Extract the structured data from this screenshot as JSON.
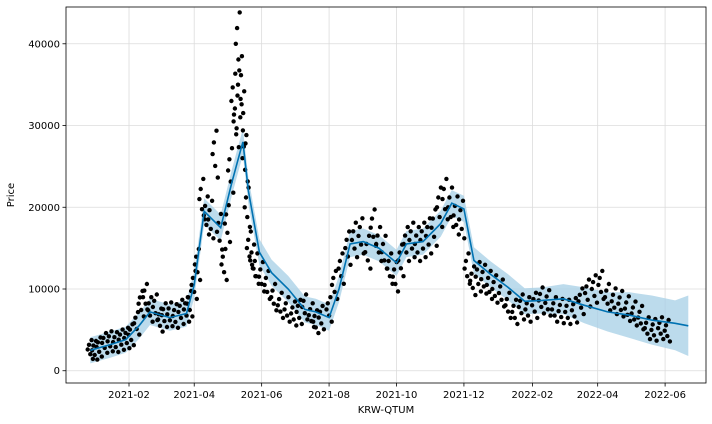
{
  "chart_data": {
    "type": "line",
    "title": "",
    "xlabel": "KRW-QTUM",
    "ylabel": "Price",
    "xlim": [
      "2020-12-06",
      "2022-07-08"
    ],
    "ylim": [
      -1500,
      44500
    ],
    "grid": true,
    "legend": "none",
    "x_ticks": [
      "2021-02",
      "2021-04",
      "2021-06",
      "2021-08",
      "2021-10",
      "2021-12",
      "2022-02",
      "2022-04",
      "2022-06"
    ],
    "y_ticks": [
      0,
      10000,
      20000,
      30000,
      40000
    ],
    "colors": {
      "forecast_line": "#0072b2",
      "uncertainty_band": "#a6cfe6",
      "observations": "#000000",
      "grid": "#dcdcdc"
    },
    "series": [
      {
        "kind": "forecast",
        "x": [
          "2020-12-28",
          "2021-01-15",
          "2021-01-29",
          "2021-02-10",
          "2021-02-20",
          "2021-03-10",
          "2021-03-25",
          "2021-04-01",
          "2021-04-10",
          "2021-04-25",
          "2021-05-05",
          "2021-05-10",
          "2021-05-15",
          "2021-05-20",
          "2021-05-30",
          "2021-06-10",
          "2021-06-25",
          "2021-07-10",
          "2021-07-20",
          "2021-08-01",
          "2021-08-10",
          "2021-08-20",
          "2021-09-01",
          "2021-09-15",
          "2021-10-01",
          "2021-10-10",
          "2021-10-25",
          "2021-11-10",
          "2021-11-20",
          "2021-12-01",
          "2021-12-10",
          "2021-12-25",
          "2022-01-10",
          "2022-01-25",
          "2022-02-10",
          "2022-03-01",
          "2022-03-20",
          "2022-04-10",
          "2022-04-30",
          "2022-05-20",
          "2022-06-10",
          "2022-06-22"
        ],
        "yhat": [
          2500,
          3200,
          3800,
          5500,
          7200,
          6500,
          7000,
          10500,
          19500,
          17500,
          23000,
          25500,
          28000,
          22000,
          14500,
          12000,
          10000,
          7500,
          7200,
          6500,
          10000,
          15500,
          15800,
          15000,
          13200,
          15500,
          15800,
          18000,
          20500,
          19800,
          13500,
          11800,
          10200,
          8500,
          8600,
          8800,
          8000,
          7200,
          6800,
          6200,
          5800,
          5500
        ],
        "yhat_lower": [
          900,
          1600,
          2200,
          3900,
          5600,
          4900,
          5400,
          8900,
          17900,
          15900,
          21400,
          23900,
          26400,
          20400,
          12900,
          10400,
          8400,
          5900,
          5600,
          4900,
          8400,
          13900,
          14200,
          13400,
          11600,
          13900,
          14200,
          16400,
          18900,
          18200,
          11900,
          10200,
          8600,
          6900,
          7000,
          6900,
          5800,
          4800,
          4000,
          3200,
          2500,
          1800
        ],
        "yhat_upper": [
          4100,
          4800,
          5400,
          7100,
          8800,
          8100,
          8600,
          12100,
          21100,
          19100,
          24600,
          27100,
          29600,
          23600,
          16100,
          13600,
          11600,
          9100,
          8800,
          8100,
          11600,
          17100,
          17400,
          16600,
          14800,
          17100,
          17400,
          19600,
          22100,
          21400,
          15100,
          13400,
          11800,
          10100,
          10200,
          10600,
          10200,
          9600,
          9600,
          9200,
          8600,
          9200
        ]
      },
      {
        "kind": "observations",
        "x": [
          "2020-12-28",
          "2021-01-01",
          "2021-01-05",
          "2021-01-10",
          "2021-01-15",
          "2021-01-20",
          "2021-01-25",
          "2021-01-30",
          "2021-02-03",
          "2021-02-08",
          "2021-02-12",
          "2021-02-16",
          "2021-02-20",
          "2021-02-25",
          "2021-03-01",
          "2021-03-05",
          "2021-03-10",
          "2021-03-15",
          "2021-03-20",
          "2021-03-25",
          "2021-03-28",
          "2021-04-01",
          "2021-04-04",
          "2021-04-08",
          "2021-04-12",
          "2021-04-16",
          "2021-04-20",
          "2021-04-24",
          "2021-04-28",
          "2021-05-01",
          "2021-05-04",
          "2021-05-07",
          "2021-05-09",
          "2021-05-11",
          "2021-05-13",
          "2021-05-15",
          "2021-05-17",
          "2021-05-19",
          "2021-05-21",
          "2021-05-24",
          "2021-05-27",
          "2021-06-01",
          "2021-06-06",
          "2021-06-12",
          "2021-06-18",
          "2021-06-24",
          "2021-06-30",
          "2021-07-05",
          "2021-07-10",
          "2021-07-16",
          "2021-07-20",
          "2021-07-25",
          "2021-08-01",
          "2021-08-06",
          "2021-08-12",
          "2021-08-18",
          "2021-08-24",
          "2021-08-30",
          "2021-09-05",
          "2021-09-10",
          "2021-09-15",
          "2021-09-20",
          "2021-09-25",
          "2021-09-30",
          "2021-10-05",
          "2021-10-10",
          "2021-10-15",
          "2021-10-20",
          "2021-10-25",
          "2021-10-30",
          "2021-11-04",
          "2021-11-09",
          "2021-11-14",
          "2021-11-19",
          "2021-11-24",
          "2021-11-29",
          "2021-12-04",
          "2021-12-09",
          "2021-12-14",
          "2021-12-19",
          "2021-12-24",
          "2021-12-29",
          "2022-01-04",
          "2022-01-10",
          "2022-01-16",
          "2022-01-22",
          "2022-01-28",
          "2022-02-03",
          "2022-02-09",
          "2022-02-15",
          "2022-02-21",
          "2022-02-27",
          "2022-03-05",
          "2022-03-11",
          "2022-03-17",
          "2022-03-23",
          "2022-03-29",
          "2022-04-04",
          "2022-04-10",
          "2022-04-16",
          "2022-04-22",
          "2022-04-28",
          "2022-05-04",
          "2022-05-10",
          "2022-05-16",
          "2022-05-22",
          "2022-05-28",
          "2022-06-03"
        ],
        "y": [
          2600,
          2500,
          2900,
          3400,
          3600,
          3500,
          3800,
          4000,
          4400,
          5800,
          8200,
          9000,
          7500,
          7800,
          6200,
          6800,
          6900,
          6700,
          7200,
          7500,
          8200,
          10500,
          13000,
          21000,
          19000,
          18500,
          26500,
          17000,
          13000,
          18000,
          24500,
          33000,
          30500,
          40000,
          35000,
          31000,
          26000,
          20000,
          15000,
          13500,
          12500,
          11500,
          10500,
          9000,
          8000,
          7500,
          7000,
          7200,
          7800,
          6800,
          6000,
          6500,
          7500,
          10500,
          12500,
          15000,
          16000,
          16500,
          14500,
          17500,
          15500,
          14500,
          12500,
          11500,
          13500,
          15500,
          16000,
          15500,
          16000,
          16500,
          17500,
          20000,
          21000,
          20000,
          19000,
          18500,
          12500,
          11000,
          11500,
          11200,
          10500,
          10000,
          9500,
          8000,
          7200,
          7800,
          7500,
          8000,
          8600,
          8300,
          7500,
          7300,
          7200,
          7400,
          8500,
          9500,
          10000,
          10500,
          9000,
          8500,
          8200,
          7600,
          7000,
          6500,
          5200,
          5000,
          5200,
          4900
        ]
      }
    ]
  }
}
